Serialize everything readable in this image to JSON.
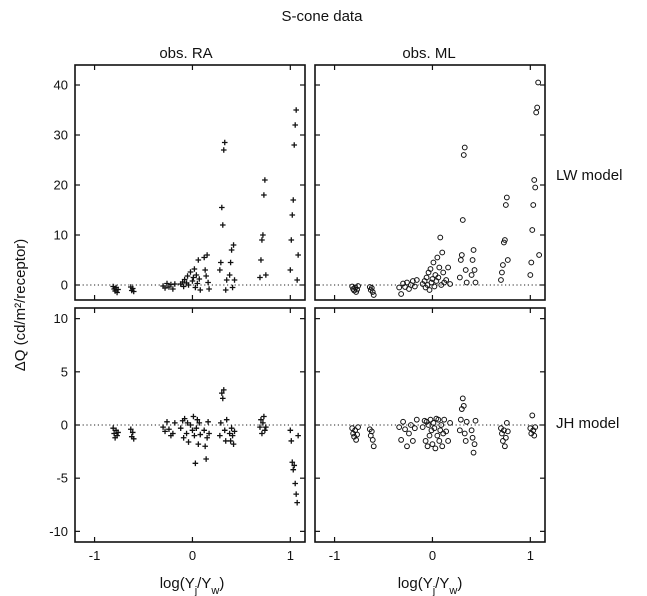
{
  "chart_data": {
    "type": "scatter",
    "title": "S-cone data",
    "columns": [
      "obs. RA",
      "obs. ML"
    ],
    "rows": [
      "LW model",
      "JH model"
    ],
    "xlabel": "log(Y_j/Y_w)",
    "ylabel": "ΔQ (cd/m²/receptor)",
    "x_range": [
      -1.2,
      1.15
    ],
    "x_ticks": [
      -1,
      0,
      1
    ],
    "x_tick_labels": [
      "-1",
      "0",
      "1"
    ],
    "top_row_y_range": [
      -3,
      44
    ],
    "top_row_y_ticks": [
      0,
      10,
      20,
      30,
      40
    ],
    "bottom_row_y_range": [
      -11,
      11
    ],
    "bottom_row_y_ticks": [
      -10,
      -5,
      0,
      5,
      10
    ],
    "zero_line": "dotted",
    "markers": {
      "obs. RA": "plus",
      "obs. ML": "circle"
    },
    "panels": [
      {
        "observer": "obs. RA",
        "model": "LW model",
        "marker": "plus",
        "points": [
          [
            -0.81,
            -0.3
          ],
          [
            -0.8,
            -0.8
          ],
          [
            -0.79,
            -1.2
          ],
          [
            -0.78,
            -0.5
          ],
          [
            -0.77,
            -1.5
          ],
          [
            -0.76,
            -0.9
          ],
          [
            -0.63,
            -0.4
          ],
          [
            -0.62,
            -1.1
          ],
          [
            -0.61,
            -0.7
          ],
          [
            -0.6,
            -1.3
          ],
          [
            -0.3,
            -0.2
          ],
          [
            -0.28,
            -0.6
          ],
          [
            -0.26,
            0.3
          ],
          [
            -0.24,
            -0.4
          ],
          [
            -0.22,
            0.1
          ],
          [
            -0.2,
            -0.8
          ],
          [
            -0.18,
            0.2
          ],
          [
            -0.12,
            0.2
          ],
          [
            -0.1,
            0.6
          ],
          [
            -0.09,
            -0.3
          ],
          [
            -0.08,
            1.1
          ],
          [
            -0.06,
            0.4
          ],
          [
            -0.05,
            1.8
          ],
          [
            -0.04,
            0.0
          ],
          [
            -0.02,
            2.6
          ],
          [
            0.0,
            0.8
          ],
          [
            0.01,
            1.5
          ],
          [
            0.02,
            3.2
          ],
          [
            0.03,
            -0.5
          ],
          [
            0.04,
            2.0
          ],
          [
            0.05,
            0.3
          ],
          [
            0.06,
            5.0
          ],
          [
            0.07,
            1.2
          ],
          [
            0.08,
            -1.0
          ],
          [
            0.12,
            5.5
          ],
          [
            0.13,
            3.0
          ],
          [
            0.14,
            1.8
          ],
          [
            0.15,
            6.0
          ],
          [
            0.16,
            0.5
          ],
          [
            0.17,
            -0.8
          ],
          [
            0.28,
            3.0
          ],
          [
            0.29,
            4.5
          ],
          [
            0.3,
            15.5
          ],
          [
            0.31,
            12.0
          ],
          [
            0.32,
            27.0
          ],
          [
            0.33,
            28.5
          ],
          [
            0.34,
            -1.0
          ],
          [
            0.35,
            1.0
          ],
          [
            0.38,
            2.0
          ],
          [
            0.39,
            4.5
          ],
          [
            0.4,
            7.0
          ],
          [
            0.41,
            -0.5
          ],
          [
            0.42,
            8.0
          ],
          [
            0.43,
            1.0
          ],
          [
            0.69,
            1.5
          ],
          [
            0.7,
            5.0
          ],
          [
            0.71,
            9.0
          ],
          [
            0.72,
            10.0
          ],
          [
            0.73,
            18.0
          ],
          [
            0.74,
            21.0
          ],
          [
            0.75,
            2.0
          ],
          [
            1.0,
            3.0
          ],
          [
            1.01,
            9.0
          ],
          [
            1.02,
            14.0
          ],
          [
            1.03,
            17.0
          ],
          [
            1.04,
            28.0
          ],
          [
            1.05,
            32.0
          ],
          [
            1.06,
            35.0
          ],
          [
            1.07,
            1.0
          ],
          [
            1.08,
            6.0
          ]
        ]
      },
      {
        "observer": "obs. ML",
        "model": "LW model",
        "marker": "circle",
        "points": [
          [
            -0.82,
            -0.3
          ],
          [
            -0.81,
            -0.8
          ],
          [
            -0.8,
            -1.1
          ],
          [
            -0.79,
            -0.5
          ],
          [
            -0.78,
            -1.4
          ],
          [
            -0.77,
            -0.9
          ],
          [
            -0.76,
            -0.2
          ],
          [
            -0.64,
            -0.4
          ],
          [
            -0.63,
            -1.0
          ],
          [
            -0.62,
            -0.6
          ],
          [
            -0.61,
            -1.4
          ],
          [
            -0.6,
            -2.0
          ],
          [
            -0.34,
            -0.5
          ],
          [
            -0.32,
            -1.8
          ],
          [
            -0.3,
            0.3
          ],
          [
            -0.28,
            -0.4
          ],
          [
            -0.26,
            0.5
          ],
          [
            -0.24,
            -0.8
          ],
          [
            -0.22,
            0.0
          ],
          [
            -0.2,
            0.8
          ],
          [
            -0.18,
            -0.3
          ],
          [
            -0.16,
            1.0
          ],
          [
            -0.1,
            0.2
          ],
          [
            -0.08,
            0.8
          ],
          [
            -0.07,
            -0.5
          ],
          [
            -0.06,
            1.5
          ],
          [
            -0.05,
            0.0
          ],
          [
            -0.04,
            2.5
          ],
          [
            -0.03,
            -1.0
          ],
          [
            -0.02,
            3.2
          ],
          [
            -0.01,
            0.5
          ],
          [
            0.0,
            1.2
          ],
          [
            0.01,
            4.5
          ],
          [
            0.02,
            -0.3
          ],
          [
            0.03,
            2.0
          ],
          [
            0.04,
            0.8
          ],
          [
            0.05,
            5.5
          ],
          [
            0.06,
            1.5
          ],
          [
            0.07,
            3.5
          ],
          [
            0.08,
            9.5
          ],
          [
            0.09,
            0.0
          ],
          [
            0.1,
            6.5
          ],
          [
            0.11,
            2.5
          ],
          [
            0.12,
            0.5
          ],
          [
            0.14,
            1.0
          ],
          [
            0.16,
            3.5
          ],
          [
            0.18,
            0.2
          ],
          [
            0.28,
            1.5
          ],
          [
            0.29,
            5.0
          ],
          [
            0.3,
            6.0
          ],
          [
            0.31,
            13.0
          ],
          [
            0.32,
            26.0
          ],
          [
            0.33,
            27.5
          ],
          [
            0.34,
            3.0
          ],
          [
            0.35,
            0.5
          ],
          [
            0.4,
            2.0
          ],
          [
            0.41,
            5.0
          ],
          [
            0.42,
            7.0
          ],
          [
            0.43,
            3.0
          ],
          [
            0.44,
            0.5
          ],
          [
            0.7,
            1.0
          ],
          [
            0.71,
            2.5
          ],
          [
            0.72,
            4.0
          ],
          [
            0.73,
            8.5
          ],
          [
            0.74,
            9.0
          ],
          [
            0.75,
            16.0
          ],
          [
            0.76,
            17.5
          ],
          [
            0.77,
            5.0
          ],
          [
            1.0,
            2.0
          ],
          [
            1.01,
            4.5
          ],
          [
            1.02,
            11.0
          ],
          [
            1.03,
            16.0
          ],
          [
            1.04,
            21.0
          ],
          [
            1.05,
            19.5
          ],
          [
            1.06,
            34.5
          ],
          [
            1.07,
            35.5
          ],
          [
            1.08,
            40.5
          ],
          [
            1.09,
            6.0
          ]
        ]
      },
      {
        "observer": "obs. RA",
        "model": "JH model",
        "marker": "plus",
        "points": [
          [
            -0.81,
            -0.3
          ],
          [
            -0.8,
            -0.8
          ],
          [
            -0.79,
            -1.2
          ],
          [
            -0.78,
            -0.5
          ],
          [
            -0.77,
            -1.0
          ],
          [
            -0.76,
            -0.7
          ],
          [
            -0.63,
            -0.4
          ],
          [
            -0.62,
            -1.1
          ],
          [
            -0.61,
            -0.7
          ],
          [
            -0.6,
            -1.3
          ],
          [
            -0.3,
            -0.2
          ],
          [
            -0.28,
            -0.6
          ],
          [
            -0.26,
            0.3
          ],
          [
            -0.24,
            -0.4
          ],
          [
            -0.22,
            -1.0
          ],
          [
            -0.2,
            -0.8
          ],
          [
            -0.18,
            0.2
          ],
          [
            -0.12,
            -0.3
          ],
          [
            -0.1,
            0.4
          ],
          [
            -0.09,
            -1.2
          ],
          [
            -0.08,
            0.6
          ],
          [
            -0.06,
            -0.8
          ],
          [
            -0.05,
            0.2
          ],
          [
            -0.04,
            -1.6
          ],
          [
            -0.02,
            0.0
          ],
          [
            0.0,
            -0.5
          ],
          [
            0.01,
            0.8
          ],
          [
            0.02,
            -1.0
          ],
          [
            0.03,
            -3.6
          ],
          [
            0.04,
            -0.3
          ],
          [
            0.05,
            0.5
          ],
          [
            0.06,
            -1.8
          ],
          [
            0.07,
            0.2
          ],
          [
            0.08,
            -0.9
          ],
          [
            0.12,
            -0.5
          ],
          [
            0.13,
            -2.0
          ],
          [
            0.14,
            -3.2
          ],
          [
            0.15,
            -1.2
          ],
          [
            0.16,
            0.3
          ],
          [
            0.17,
            -0.8
          ],
          [
            0.28,
            -1.0
          ],
          [
            0.29,
            0.2
          ],
          [
            0.3,
            3.0
          ],
          [
            0.31,
            2.5
          ],
          [
            0.32,
            3.3
          ],
          [
            0.33,
            -0.5
          ],
          [
            0.34,
            -1.5
          ],
          [
            0.35,
            0.5
          ],
          [
            0.38,
            -0.8
          ],
          [
            0.39,
            -1.5
          ],
          [
            0.4,
            -0.3
          ],
          [
            0.41,
            -1.0
          ],
          [
            0.42,
            -1.8
          ],
          [
            0.43,
            -0.6
          ],
          [
            0.69,
            -0.2
          ],
          [
            0.7,
            0.5
          ],
          [
            0.71,
            -0.8
          ],
          [
            0.72,
            0.2
          ],
          [
            0.73,
            0.8
          ],
          [
            0.74,
            -0.5
          ],
          [
            0.75,
            -0.2
          ],
          [
            1.0,
            -0.5
          ],
          [
            1.01,
            -1.5
          ],
          [
            1.02,
            -3.5
          ],
          [
            1.03,
            -4.2
          ],
          [
            1.04,
            -3.8
          ],
          [
            1.05,
            -5.5
          ],
          [
            1.06,
            -6.5
          ],
          [
            1.07,
            -7.3
          ],
          [
            1.08,
            -1.0
          ]
        ]
      },
      {
        "observer": "obs. ML",
        "model": "JH model",
        "marker": "circle",
        "points": [
          [
            -0.82,
            -0.3
          ],
          [
            -0.81,
            -0.8
          ],
          [
            -0.8,
            -1.1
          ],
          [
            -0.79,
            -0.5
          ],
          [
            -0.78,
            -1.4
          ],
          [
            -0.77,
            -0.9
          ],
          [
            -0.76,
            -0.2
          ],
          [
            -0.64,
            -0.4
          ],
          [
            -0.63,
            -1.0
          ],
          [
            -0.62,
            -0.6
          ],
          [
            -0.61,
            -1.4
          ],
          [
            -0.6,
            -2.0
          ],
          [
            -0.34,
            -0.2
          ],
          [
            -0.32,
            -1.4
          ],
          [
            -0.3,
            0.3
          ],
          [
            -0.28,
            -0.4
          ],
          [
            -0.26,
            -2.0
          ],
          [
            -0.24,
            -0.8
          ],
          [
            -0.22,
            0.0
          ],
          [
            -0.2,
            -1.5
          ],
          [
            -0.18,
            -0.3
          ],
          [
            -0.16,
            0.5
          ],
          [
            -0.1,
            -0.2
          ],
          [
            -0.08,
            0.4
          ],
          [
            -0.07,
            -1.5
          ],
          [
            -0.06,
            0.3
          ],
          [
            -0.05,
            -2.0
          ],
          [
            -0.04,
            0.0
          ],
          [
            -0.03,
            -1.0
          ],
          [
            -0.02,
            0.5
          ],
          [
            -0.01,
            -0.5
          ],
          [
            0.0,
            -1.8
          ],
          [
            0.01,
            0.2
          ],
          [
            0.02,
            -0.3
          ],
          [
            0.03,
            -2.2
          ],
          [
            0.04,
            0.6
          ],
          [
            0.05,
            -1.0
          ],
          [
            0.06,
            0.5
          ],
          [
            0.07,
            -1.5
          ],
          [
            0.08,
            -0.5
          ],
          [
            0.09,
            0.0
          ],
          [
            0.1,
            -2.0
          ],
          [
            0.11,
            -0.8
          ],
          [
            0.12,
            0.5
          ],
          [
            0.14,
            -0.6
          ],
          [
            0.16,
            -1.5
          ],
          [
            0.18,
            0.2
          ],
          [
            0.28,
            -0.5
          ],
          [
            0.29,
            0.5
          ],
          [
            0.3,
            1.5
          ],
          [
            0.31,
            2.5
          ],
          [
            0.32,
            1.8
          ],
          [
            0.33,
            -0.8
          ],
          [
            0.34,
            -1.5
          ],
          [
            0.35,
            0.3
          ],
          [
            0.4,
            -0.5
          ],
          [
            0.41,
            -1.2
          ],
          [
            0.42,
            -2.6
          ],
          [
            0.43,
            -1.8
          ],
          [
            0.44,
            0.4
          ],
          [
            0.7,
            -0.3
          ],
          [
            0.71,
            -0.8
          ],
          [
            0.72,
            -1.5
          ],
          [
            0.73,
            -0.5
          ],
          [
            0.74,
            -2.0
          ],
          [
            0.75,
            -1.2
          ],
          [
            0.76,
            0.2
          ],
          [
            0.77,
            -0.6
          ],
          [
            1.0,
            -0.3
          ],
          [
            1.01,
            -0.8
          ],
          [
            1.02,
            0.9
          ],
          [
            1.03,
            -0.5
          ],
          [
            1.04,
            -1.0
          ],
          [
            1.05,
            -0.2
          ]
        ]
      }
    ]
  }
}
